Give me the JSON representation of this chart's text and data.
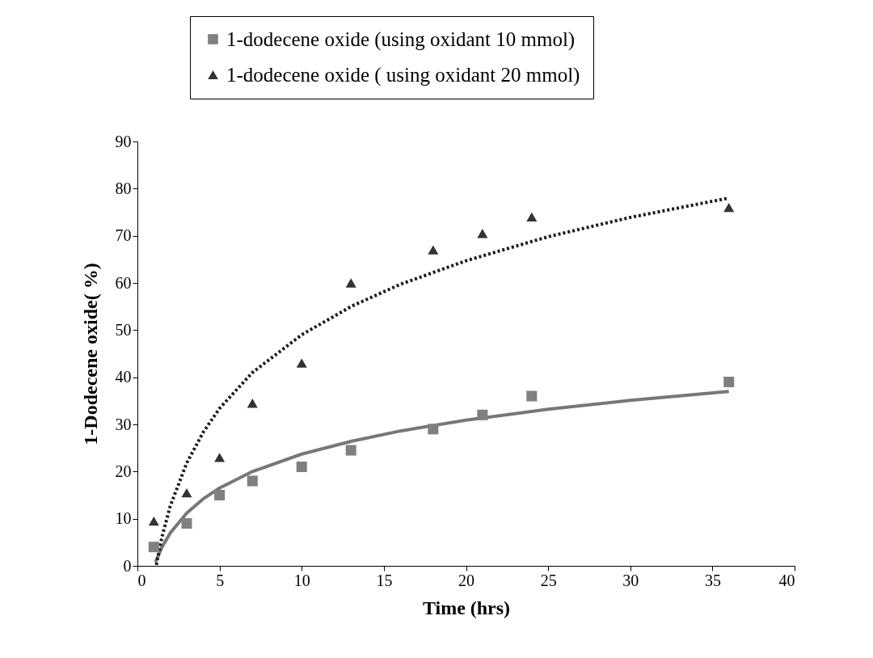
{
  "chart_data": {
    "type": "scatter",
    "xlabel": "Time (hrs)",
    "ylabel": "1-Dodecene oxide( %)",
    "xlim": [
      0,
      40
    ],
    "xticks": [
      0,
      5,
      10,
      15,
      20,
      25,
      30,
      35,
      40
    ],
    "ylim": [
      0,
      90
    ],
    "yticks": [
      0,
      10,
      20,
      30,
      40,
      50,
      60,
      70,
      80,
      90
    ],
    "grid": false,
    "legend": "top",
    "series": [
      {
        "name": "1-dodecene oxide (using  oxidant 10 mmol)",
        "color": "#808080",
        "marker": "square",
        "x": [
          1,
          3,
          5,
          7,
          10,
          13,
          18,
          21,
          24,
          36
        ],
        "values": [
          4,
          9,
          15,
          18,
          21,
          24.5,
          29,
          32,
          36,
          39
        ]
      },
      {
        "name": "1-dodecene oxide ( using oxidant 20 mmol)",
        "color": "#333333",
        "marker": "triangle",
        "x": [
          1,
          3,
          5,
          7,
          10,
          13,
          18,
          21,
          24,
          36
        ],
        "values": [
          9.5,
          15.5,
          23,
          34.5,
          43,
          60,
          67,
          70.5,
          74,
          76
        ]
      },
      {
        "type": "line",
        "color": "#777777",
        "line_style": "solid",
        "x": [
          1.1,
          1.5,
          2,
          3,
          4,
          5,
          7,
          10,
          13,
          16,
          20,
          25,
          30,
          36
        ],
        "values": [
          0.8,
          4,
          7,
          11.2,
          14.2,
          16.5,
          20,
          23.7,
          26.4,
          28.6,
          30.9,
          33.2,
          35.1,
          37
        ]
      },
      {
        "type": "line",
        "color": "#1a1a1a",
        "line_style": "dotted",
        "x": [
          1.15,
          1.5,
          2,
          3,
          4,
          5,
          7,
          10,
          13,
          16,
          20,
          25,
          30,
          36
        ],
        "values": [
          0.2,
          6.2,
          12.7,
          21.8,
          28.3,
          33.4,
          41,
          49,
          55,
          59.7,
          64.7,
          69.8,
          73.9,
          78
        ]
      }
    ]
  }
}
